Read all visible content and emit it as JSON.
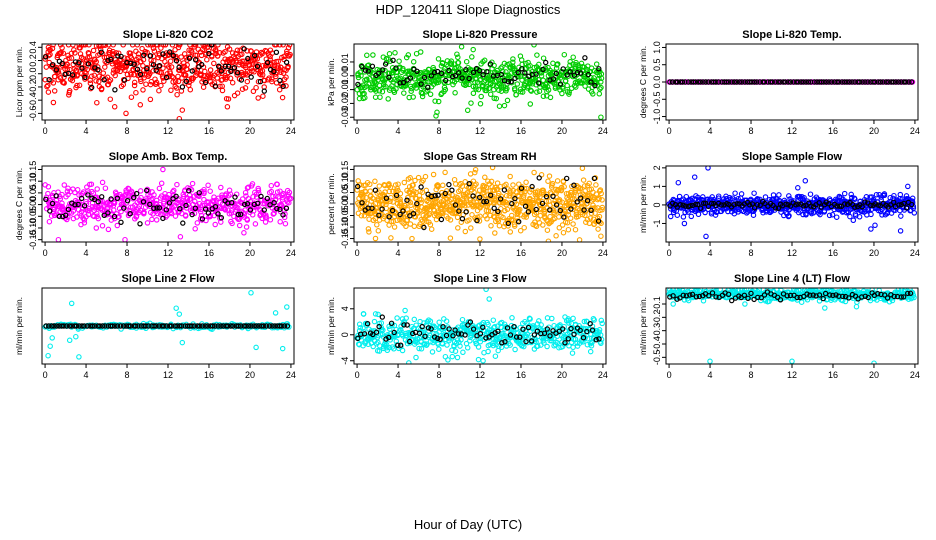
{
  "page": {
    "title": "HDP_120411  Slope Diagnostics",
    "x_caption": "Hour of Day (UTC)"
  },
  "colors": {
    "red": "#ff0000",
    "green": "#00cc00",
    "magenta": "#ff00ff",
    "orange": "#ffa500",
    "blue": "#0000ff",
    "cyan": "#00eeee",
    "overlay": "#000000"
  },
  "chart_data": [
    {
      "id": "co2",
      "type": "scatter",
      "title": "Slope Li-820 CO2",
      "ylabel": "Licor ppm per min.",
      "ylim": [
        -0.7,
        0.45
      ],
      "yticks": [
        -0.6,
        -0.4,
        -0.2,
        0.0,
        0.2,
        0.4
      ],
      "ytick_labels": [
        "-0.6",
        "-0.4",
        "-0.2",
        "0.0",
        "0.2",
        "0.4"
      ],
      "xlim": [
        -0.3,
        24.3
      ],
      "xticks": [
        0,
        4,
        8,
        12,
        16,
        20,
        24
      ],
      "series_color": "red",
      "center": 0.12,
      "spread": 0.22,
      "points": 620,
      "seed": 11,
      "outliers": [
        [
          7.9,
          -0.6
        ],
        [
          6.8,
          -0.5
        ],
        [
          13.1,
          -0.68
        ],
        [
          13.4,
          -0.55
        ],
        [
          17.8,
          -0.5
        ],
        [
          9.3,
          -0.47
        ]
      ],
      "overlay": {
        "center": 0.1,
        "spread": 0.16,
        "points": 75
      }
    },
    {
      "id": "pressure",
      "type": "scatter",
      "title": "Slope Li-820 Pressure",
      "ylabel": "kPa per min.",
      "ylim": [
        -0.032,
        0.023
      ],
      "yticks": [
        -0.03,
        -0.02,
        -0.01,
        0.0,
        0.01
      ],
      "ytick_labels": [
        "-0.03",
        "-0.02",
        "-0.01",
        "0.00",
        "0.01"
      ],
      "xlim": [
        -0.3,
        24.3
      ],
      "xticks": [
        0,
        4,
        8,
        12,
        16,
        20,
        24
      ],
      "series_color": "green",
      "center": -0.001,
      "spread": 0.007,
      "points": 640,
      "seed": 23,
      "outliers": [
        [
          10.2,
          0.021
        ],
        [
          7.7,
          -0.029
        ],
        [
          10.8,
          -0.025
        ],
        [
          23.8,
          -0.03
        ],
        [
          13.9,
          -0.022
        ]
      ],
      "overlay": {
        "center": 0.0,
        "spread": 0.005,
        "points": 70
      }
    },
    {
      "id": "temp",
      "type": "scatter",
      "title": "Slope Li-820 Temp.",
      "ylabel": "degrees C per min.",
      "ylim": [
        -1.1,
        1.1
      ],
      "yticks": [
        -1.0,
        -0.5,
        0.0,
        0.5,
        1.0
      ],
      "ytick_labels": [
        "-1.0",
        "-0.5",
        "0.0",
        "0.5",
        "1.0"
      ],
      "xlim": [
        -0.3,
        24.3
      ],
      "xticks": [
        0,
        4,
        8,
        12,
        16,
        20,
        24
      ],
      "series_color": "magenta",
      "center": 0.0,
      "spread": 0.0,
      "points": 140,
      "seed": 5,
      "outliers": [],
      "overlay": {
        "center": 0.0,
        "spread": 0.0,
        "points": 95
      }
    },
    {
      "id": "boxtemp",
      "type": "scatter",
      "title": "Slope Amb. Box Temp.",
      "ylabel": "degrees C per min.",
      "ylim": [
        -0.16,
        0.165
      ],
      "yticks": [
        -0.15,
        -0.1,
        -0.05,
        0.0,
        0.05,
        0.1,
        0.15
      ],
      "ytick_labels": [
        "-0.15",
        "-0.10",
        "-0.05",
        "0.00",
        "0.05",
        "0.10",
        "0.15"
      ],
      "xlim": [
        -0.3,
        24.3
      ],
      "xticks": [
        0,
        4,
        8,
        12,
        16,
        20,
        24
      ],
      "series_color": "magenta",
      "center": 0.0,
      "spread": 0.04,
      "points": 560,
      "seed": 31,
      "outliers": [
        [
          7.8,
          -0.15
        ],
        [
          1.3,
          -0.15
        ],
        [
          11.5,
          0.15
        ],
        [
          5.0,
          -0.1
        ]
      ],
      "overlay": {
        "center": 0.0,
        "spread": 0.035,
        "points": 75
      }
    },
    {
      "id": "rh",
      "type": "scatter",
      "title": "Slope Gas Stream RH",
      "ylabel": "percent per min.",
      "ylim": [
        -0.165,
        0.165
      ],
      "yticks": [
        -0.15,
        -0.1,
        -0.05,
        0.0,
        0.05,
        0.1,
        0.15
      ],
      "ytick_labels": [
        "-0.15",
        "-0.10",
        "-0.05",
        "0.00",
        "0.05",
        "0.10",
        "0.15"
      ],
      "xlim": [
        -0.3,
        24.3
      ],
      "xticks": [
        0,
        4,
        8,
        12,
        16,
        20,
        24
      ],
      "series_color": "orange",
      "center": 0.0,
      "spread": 0.055,
      "points": 780,
      "seed": 47,
      "outliers": [
        [
          1.8,
          -0.15
        ],
        [
          22.0,
          0.155
        ],
        [
          23.8,
          -0.14
        ]
      ],
      "overlay": {
        "center": 0.0,
        "spread": 0.05,
        "points": 70
      }
    },
    {
      "id": "sampleflow",
      "type": "scatter",
      "title": "Slope Sample Flow",
      "ylabel": "ml/min per min.",
      "ylim": [
        -2.0,
        2.1
      ],
      "yticks": [
        -1,
        0,
        1,
        2
      ],
      "ytick_labels": [
        "-1",
        "0",
        "1",
        "2"
      ],
      "xlim": [
        -0.3,
        24.3
      ],
      "xticks": [
        0,
        4,
        8,
        12,
        16,
        20,
        24
      ],
      "series_color": "blue",
      "center": 0.0,
      "spread": 0.25,
      "points": 640,
      "seed": 59,
      "outliers": [
        [
          3.8,
          2.0
        ],
        [
          3.6,
          -1.7
        ],
        [
          0.9,
          1.2
        ],
        [
          1.5,
          -1.0
        ],
        [
          13.3,
          1.3
        ],
        [
          20.1,
          -1.1
        ],
        [
          19.7,
          -1.3
        ],
        [
          23.3,
          1.0
        ],
        [
          22.6,
          -1.4
        ],
        [
          2.5,
          1.5
        ]
      ],
      "overlay": {
        "center": 0.0,
        "spread": 0.08,
        "points": 95
      }
    },
    {
      "id": "line2",
      "type": "scatter",
      "title": "Slope Line 2 Flow",
      "ylabel": "ml/min per min.",
      "ylim": [
        -3.2,
        3.2
      ],
      "yticks": [],
      "ytick_labels": [],
      "xlim": [
        -0.3,
        24.3
      ],
      "xticks": [
        0,
        4,
        8,
        12,
        16,
        20,
        24
      ],
      "series_color": "cyan",
      "center": 0.0,
      "spread": 0.1,
      "points": 220,
      "seed": 71,
      "outliers": [
        [
          0.3,
          -2.5
        ],
        [
          0.5,
          -1.7
        ],
        [
          0.7,
          -1.0
        ],
        [
          2.6,
          1.9
        ],
        [
          3.0,
          -0.9
        ],
        [
          3.3,
          -2.6
        ],
        [
          2.4,
          -1.2
        ],
        [
          12.8,
          1.5
        ],
        [
          13.4,
          -1.4
        ],
        [
          13.1,
          1.0
        ],
        [
          20.1,
          2.8
        ],
        [
          20.6,
          -1.8
        ],
        [
          23.6,
          1.6
        ],
        [
          23.2,
          -1.9
        ],
        [
          22.5,
          1.1
        ]
      ],
      "overlay": {
        "center": 0.0,
        "spread": 0.0,
        "points": 95
      }
    },
    {
      "id": "line3",
      "type": "scatter",
      "title": "Slope Line 3 Flow",
      "ylabel": "ml/min per min.",
      "ylim": [
        -4.5,
        7.2
      ],
      "yticks": [
        -4,
        0,
        4
      ],
      "ytick_labels": [
        "-4",
        "0",
        "4"
      ],
      "xlim": [
        -0.3,
        24.3
      ],
      "xticks": [
        0,
        4,
        8,
        12,
        16,
        20,
        24
      ],
      "series_color": "cyan",
      "center": 0.0,
      "spread": 1.3,
      "points": 560,
      "seed": 83,
      "outliers": [
        [
          12.6,
          7.0
        ],
        [
          12.9,
          5.5
        ],
        [
          13.5,
          -3.3
        ],
        [
          12.3,
          -4.0
        ],
        [
          9.8,
          -3.5
        ]
      ],
      "overlay": {
        "center": 0.2,
        "spread": 1.0,
        "points": 80
      }
    },
    {
      "id": "line4",
      "type": "scatter",
      "title": "Slope Line 4 (LT) Flow",
      "ylabel": "ml/min per min.",
      "ylim": [
        -0.55,
        0.02
      ],
      "yticks": [
        -0.5,
        -0.4,
        -0.3,
        -0.2,
        -0.1
      ],
      "ytick_labels": [
        "-0.5",
        "-0.4",
        "-0.3",
        "-0.2",
        "-0.1"
      ],
      "xlim": [
        -0.3,
        24.3
      ],
      "xticks": [
        0,
        4,
        8,
        12,
        16,
        20,
        24
      ],
      "series_color": "cyan",
      "center": -0.03,
      "spread": 0.022,
      "points": 520,
      "seed": 97,
      "outliers": [
        [
          4.0,
          -0.53
        ],
        [
          12.0,
          -0.53
        ],
        [
          20.0,
          -0.55
        ],
        [
          18.3,
          -0.12
        ],
        [
          0.4,
          -0.1
        ],
        [
          15.2,
          -0.13
        ],
        [
          7.4,
          -0.1
        ]
      ],
      "overlay": {
        "center": -0.035,
        "spread": 0.015,
        "points": 75
      }
    }
  ]
}
